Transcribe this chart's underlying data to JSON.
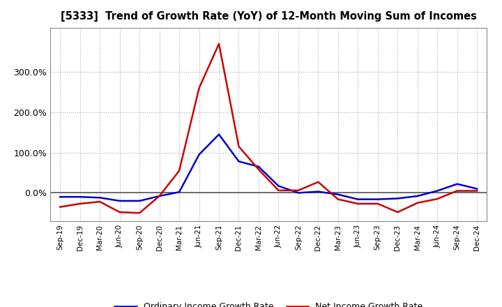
{
  "title": "[5333]  Trend of Growth Rate (YoY) of 12-Month Moving Sum of Incomes",
  "x_labels": [
    "Sep-19",
    "Dec-19",
    "Mar-20",
    "Jun-20",
    "Sep-20",
    "Dec-20",
    "Mar-21",
    "Jun-21",
    "Sep-21",
    "Dec-21",
    "Mar-22",
    "Jun-22",
    "Sep-22",
    "Dec-22",
    "Mar-23",
    "Jun-23",
    "Sep-23",
    "Dec-23",
    "Mar-24",
    "Jun-24",
    "Sep-24",
    "Dec-24"
  ],
  "ordinary_income": [
    -0.1,
    -0.1,
    -0.12,
    -0.2,
    -0.2,
    -0.08,
    0.02,
    0.95,
    1.45,
    0.78,
    0.65,
    0.17,
    0.0,
    0.03,
    -0.04,
    -0.16,
    -0.16,
    -0.14,
    -0.08,
    0.05,
    0.22,
    0.1
  ],
  "net_income": [
    -0.35,
    -0.27,
    -0.22,
    -0.48,
    -0.5,
    -0.08,
    0.55,
    2.6,
    3.7,
    1.15,
    0.58,
    0.06,
    0.06,
    0.27,
    -0.16,
    -0.27,
    -0.27,
    -0.48,
    -0.25,
    -0.15,
    0.05,
    0.05
  ],
  "ordinary_color": "#0000cc",
  "net_color": "#cc0000",
  "background_color": "#ffffff",
  "grid_color": "#aaaaaa",
  "zero_line_color": "#555555",
  "ylim_min": -0.7,
  "ylim_max": 4.1,
  "ytick_vals": [
    0.0,
    1.0,
    2.0,
    3.0
  ],
  "ytick_labels": [
    "0.0%",
    "100.0%",
    "200.0%",
    "300.0%"
  ],
  "legend_ordinary": "Ordinary Income Growth Rate",
  "legend_net": "Net Income Growth Rate"
}
